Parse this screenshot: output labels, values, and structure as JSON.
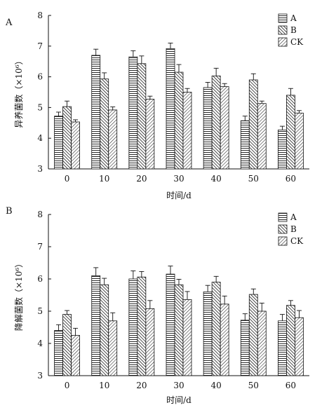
{
  "chart_data": [
    {
      "type": "bar",
      "panel_label": "A",
      "categories": [
        "0",
        "10",
        "20",
        "30",
        "40",
        "50",
        "60"
      ],
      "series": [
        {
          "name": "A",
          "pattern": "horizontal",
          "values": [
            4.72,
            6.7,
            6.65,
            6.92,
            5.65,
            4.57,
            4.27
          ],
          "errors": [
            0.13,
            0.2,
            0.2,
            0.18,
            0.17,
            0.15,
            0.12
          ]
        },
        {
          "name": "B",
          "pattern": "backslash",
          "values": [
            5.03,
            5.93,
            6.43,
            6.15,
            6.03,
            5.9,
            5.4
          ],
          "errors": [
            0.18,
            0.2,
            0.25,
            0.25,
            0.25,
            0.2,
            0.22
          ]
        },
        {
          "name": "CK",
          "pattern": "slash",
          "values": [
            4.53,
            4.92,
            5.27,
            5.5,
            5.68,
            5.13,
            4.82
          ],
          "errors": [
            0.07,
            0.1,
            0.1,
            0.12,
            0.1,
            0.08,
            0.08
          ]
        }
      ],
      "xlabel": "时间/d",
      "ylabel": "异养菌数（×10⁶）",
      "ylim": [
        3,
        8
      ],
      "yticks": [
        "3",
        "4",
        "5",
        "6",
        "7",
        "8"
      ],
      "legend": "top-right"
    },
    {
      "type": "bar",
      "panel_label": "B",
      "categories": [
        "0",
        "10",
        "20",
        "30",
        "40",
        "50",
        "60"
      ],
      "series": [
        {
          "name": "A",
          "pattern": "horizontal",
          "values": [
            4.4,
            6.1,
            6.0,
            6.15,
            5.6,
            4.72,
            4.7
          ],
          "errors": [
            0.18,
            0.25,
            0.25,
            0.25,
            0.2,
            0.2,
            0.2
          ]
        },
        {
          "name": "B",
          "pattern": "backslash",
          "values": [
            4.9,
            5.82,
            6.06,
            5.82,
            5.9,
            5.52,
            5.18
          ],
          "errors": [
            0.12,
            0.2,
            0.17,
            0.17,
            0.18,
            0.17,
            0.15
          ]
        },
        {
          "name": "CK",
          "pattern": "slash",
          "values": [
            4.25,
            4.7,
            5.08,
            5.36,
            5.22,
            5.0,
            4.8
          ],
          "errors": [
            0.22,
            0.25,
            0.25,
            0.25,
            0.25,
            0.25,
            0.22
          ]
        }
      ],
      "xlabel": "时间/d",
      "ylabel": "降解菌数（×10⁶）",
      "ylim": [
        3,
        8
      ],
      "yticks": [
        "3",
        "4",
        "5",
        "6",
        "7",
        "8"
      ],
      "legend": "top-right"
    }
  ]
}
